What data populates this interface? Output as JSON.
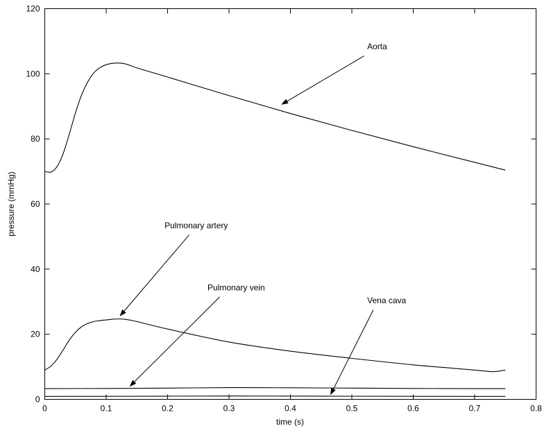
{
  "chart_data": {
    "type": "line",
    "title": "",
    "xlabel": "time (s)",
    "ylabel": "pressure (mmHg)",
    "xlim": [
      0,
      0.8
    ],
    "ylim": [
      0,
      120
    ],
    "xticks": [
      0,
      0.1,
      0.2,
      0.3,
      0.4,
      0.5,
      0.6,
      0.7,
      0.8
    ],
    "xtick_labels": [
      "0",
      "0.1",
      "0.2",
      "0.3",
      "0.4",
      "0.5",
      "0.6",
      "0.7",
      "0.8"
    ],
    "yticks": [
      0,
      20,
      40,
      60,
      80,
      100,
      120
    ],
    "ytick_labels": [
      "0",
      "20",
      "40",
      "60",
      "80",
      "100",
      "120"
    ],
    "grid": false,
    "legend": false,
    "series": [
      {
        "name": "Aorta",
        "x": [
          0,
          0.01,
          0.02,
          0.03,
          0.04,
          0.05,
          0.06,
          0.07,
          0.08,
          0.09,
          0.1,
          0.11,
          0.12,
          0.13,
          0.14,
          0.15,
          0.2,
          0.3,
          0.4,
          0.5,
          0.6,
          0.7,
          0.75
        ],
        "y": [
          70,
          69.8,
          71.5,
          75.5,
          81.5,
          88,
          93.5,
          97.5,
          100.3,
          101.9,
          102.8,
          103.2,
          103.3,
          103.1,
          102.5,
          101.8,
          99,
          93.3,
          87.8,
          82.6,
          77.6,
          72.8,
          70.4
        ]
      },
      {
        "name": "Pulmonary artery",
        "x": [
          0,
          0.01,
          0.02,
          0.03,
          0.04,
          0.05,
          0.06,
          0.07,
          0.08,
          0.09,
          0.1,
          0.11,
          0.12,
          0.13,
          0.14,
          0.15,
          0.2,
          0.3,
          0.4,
          0.5,
          0.6,
          0.7,
          0.73,
          0.75
        ],
        "y": [
          9,
          10.2,
          12.3,
          15.2,
          18.2,
          20.6,
          22.3,
          23.3,
          23.9,
          24.2,
          24.4,
          24.6,
          24.7,
          24.6,
          24.3,
          23.9,
          21.6,
          17.6,
          14.8,
          12.6,
          10.6,
          9.0,
          8.5,
          9.0
        ]
      },
      {
        "name": "Pulmonary vein",
        "x": [
          0,
          0.1,
          0.2,
          0.3,
          0.4,
          0.5,
          0.6,
          0.7,
          0.75
        ],
        "y": [
          3.3,
          3.35,
          3.45,
          3.6,
          3.55,
          3.45,
          3.35,
          3.3,
          3.3
        ]
      },
      {
        "name": "Vena cava",
        "x": [
          0,
          0.1,
          0.2,
          0.3,
          0.4,
          0.5,
          0.6,
          0.7,
          0.75
        ],
        "y": [
          0.9,
          0.92,
          0.98,
          1.02,
          1.0,
          0.96,
          0.93,
          0.9,
          0.9
        ]
      }
    ],
    "annotations": [
      {
        "text": "Aorta",
        "text_x": 0.525,
        "text_y": 107.5,
        "tail_x": 0.52,
        "tail_y": 105.5,
        "head_x": 0.385,
        "head_y": 90.5
      },
      {
        "text": "Pulmonary artery",
        "text_x": 0.195,
        "text_y": 52.5,
        "tail_x": 0.235,
        "tail_y": 50.5,
        "head_x": 0.122,
        "head_y": 25.5
      },
      {
        "text": "Pulmonary vein",
        "text_x": 0.265,
        "text_y": 33.5,
        "tail_x": 0.285,
        "tail_y": 31.5,
        "head_x": 0.138,
        "head_y": 3.9
      },
      {
        "text": "Vena cava",
        "text_x": 0.525,
        "text_y": 29.5,
        "tail_x": 0.535,
        "tail_y": 27.5,
        "head_x": 0.465,
        "head_y": 1.3
      }
    ]
  }
}
